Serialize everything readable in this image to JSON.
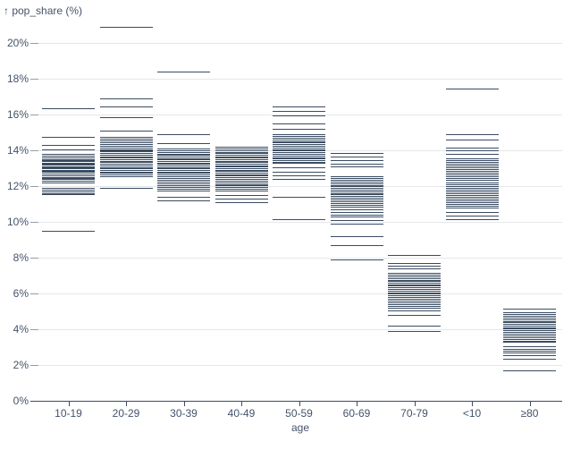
{
  "chart_data": {
    "type": "tick",
    "y_axis_label": "↑ pop_share (%)",
    "x_axis_label": "age",
    "ylim": [
      0,
      21
    ],
    "yticks": [
      0,
      2,
      4,
      6,
      8,
      10,
      12,
      14,
      16,
      18,
      20
    ],
    "ytick_labels": [
      "0%",
      "2%",
      "4%",
      "6%",
      "8%",
      "10%",
      "12%",
      "14%",
      "16%",
      "18%",
      "20%"
    ],
    "grid": "horizontal",
    "colors": {
      "tick_mark": "#3a4c61",
      "gridline": "#e4e7ea",
      "axis_line": "#3c4d61",
      "axis_text": "#44536a"
    },
    "categories": [
      "10-19",
      "20-29",
      "30-39",
      "40-49",
      "50-59",
      "60-69",
      "70-79",
      "<10",
      "≥80"
    ],
    "series": [
      {
        "category": "10-19",
        "values": [
          16.35,
          14.75,
          14.3,
          14.05,
          13.8,
          13.7,
          13.6,
          13.5,
          13.45,
          13.4,
          13.3,
          13.25,
          13.2,
          13.1,
          13.05,
          13.0,
          12.9,
          12.85,
          12.8,
          12.7,
          12.6,
          12.5,
          12.45,
          12.4,
          12.3,
          12.2,
          11.9,
          11.8,
          11.7,
          11.6,
          11.55,
          9.5
        ]
      },
      {
        "category": "20-29",
        "values": [
          20.9,
          16.9,
          16.45,
          15.85,
          15.1,
          14.75,
          14.65,
          14.55,
          14.45,
          14.35,
          14.25,
          14.15,
          14.05,
          14.0,
          13.95,
          13.85,
          13.75,
          13.65,
          13.6,
          13.5,
          13.4,
          13.35,
          13.25,
          13.15,
          13.05,
          13.0,
          12.9,
          12.8,
          12.75,
          12.65,
          12.55,
          11.9
        ]
      },
      {
        "category": "30-39",
        "values": [
          18.4,
          14.9,
          14.4,
          14.1,
          14.0,
          13.9,
          13.8,
          13.75,
          13.65,
          13.55,
          13.5,
          13.4,
          13.3,
          13.25,
          13.15,
          13.05,
          13.0,
          12.9,
          12.8,
          12.75,
          12.65,
          12.55,
          12.45,
          12.35,
          12.25,
          12.15,
          12.05,
          11.95,
          11.85,
          11.75,
          11.4,
          11.2
        ]
      },
      {
        "category": "40-49",
        "values": [
          14.2,
          14.1,
          14.0,
          13.9,
          13.85,
          13.75,
          13.65,
          13.6,
          13.5,
          13.4,
          13.35,
          13.25,
          13.15,
          13.1,
          13.0,
          12.9,
          12.85,
          12.75,
          12.65,
          12.6,
          12.5,
          12.4,
          12.3,
          12.2,
          12.1,
          12.05,
          11.95,
          11.85,
          11.75,
          11.5,
          11.3,
          11.1
        ]
      },
      {
        "category": "50-59",
        "values": [
          16.45,
          16.2,
          15.95,
          15.5,
          15.2,
          14.9,
          14.8,
          14.7,
          14.6,
          14.5,
          14.45,
          14.35,
          14.25,
          14.15,
          14.05,
          14.0,
          13.9,
          13.8,
          13.7,
          13.6,
          13.55,
          13.45,
          13.35,
          13.3,
          13.05,
          12.8,
          12.6,
          12.4,
          11.4,
          10.15
        ]
      },
      {
        "category": "60-69",
        "values": [
          13.85,
          13.65,
          13.45,
          13.25,
          13.1,
          12.55,
          12.45,
          12.35,
          12.25,
          12.15,
          12.05,
          12.0,
          11.9,
          11.8,
          11.7,
          11.6,
          11.55,
          11.45,
          11.35,
          11.25,
          11.15,
          11.05,
          10.95,
          10.85,
          10.7,
          10.55,
          10.4,
          10.3,
          10.1,
          9.9,
          9.2,
          8.7,
          7.9
        ]
      },
      {
        "category": "70-79",
        "values": [
          8.15,
          7.7,
          7.55,
          7.4,
          7.15,
          7.05,
          6.95,
          6.85,
          6.75,
          6.7,
          6.6,
          6.5,
          6.45,
          6.35,
          6.25,
          6.15,
          6.05,
          6.0,
          5.9,
          5.8,
          5.7,
          5.6,
          5.5,
          5.4,
          5.3,
          5.2,
          5.05,
          4.8,
          4.2,
          3.9
        ]
      },
      {
        "category": "<10",
        "values": [
          17.45,
          14.9,
          14.6,
          14.15,
          14.0,
          13.8,
          13.55,
          13.45,
          13.35,
          13.25,
          13.15,
          13.05,
          12.95,
          12.85,
          12.75,
          12.65,
          12.55,
          12.45,
          12.35,
          12.2,
          12.1,
          12.0,
          11.9,
          11.8,
          11.7,
          11.6,
          11.5,
          11.4,
          11.3,
          11.2,
          11.1,
          11.0,
          10.9,
          10.8,
          10.55,
          10.35,
          10.15
        ]
      },
      {
        "category": "≥80",
        "values": [
          5.15,
          4.95,
          4.85,
          4.75,
          4.65,
          4.55,
          4.45,
          4.4,
          4.3,
          4.2,
          4.1,
          4.05,
          3.95,
          3.85,
          3.75,
          3.65,
          3.55,
          3.45,
          3.35,
          3.3,
          3.05,
          2.9,
          2.8,
          2.7,
          2.55,
          2.35,
          1.7
        ]
      }
    ]
  }
}
